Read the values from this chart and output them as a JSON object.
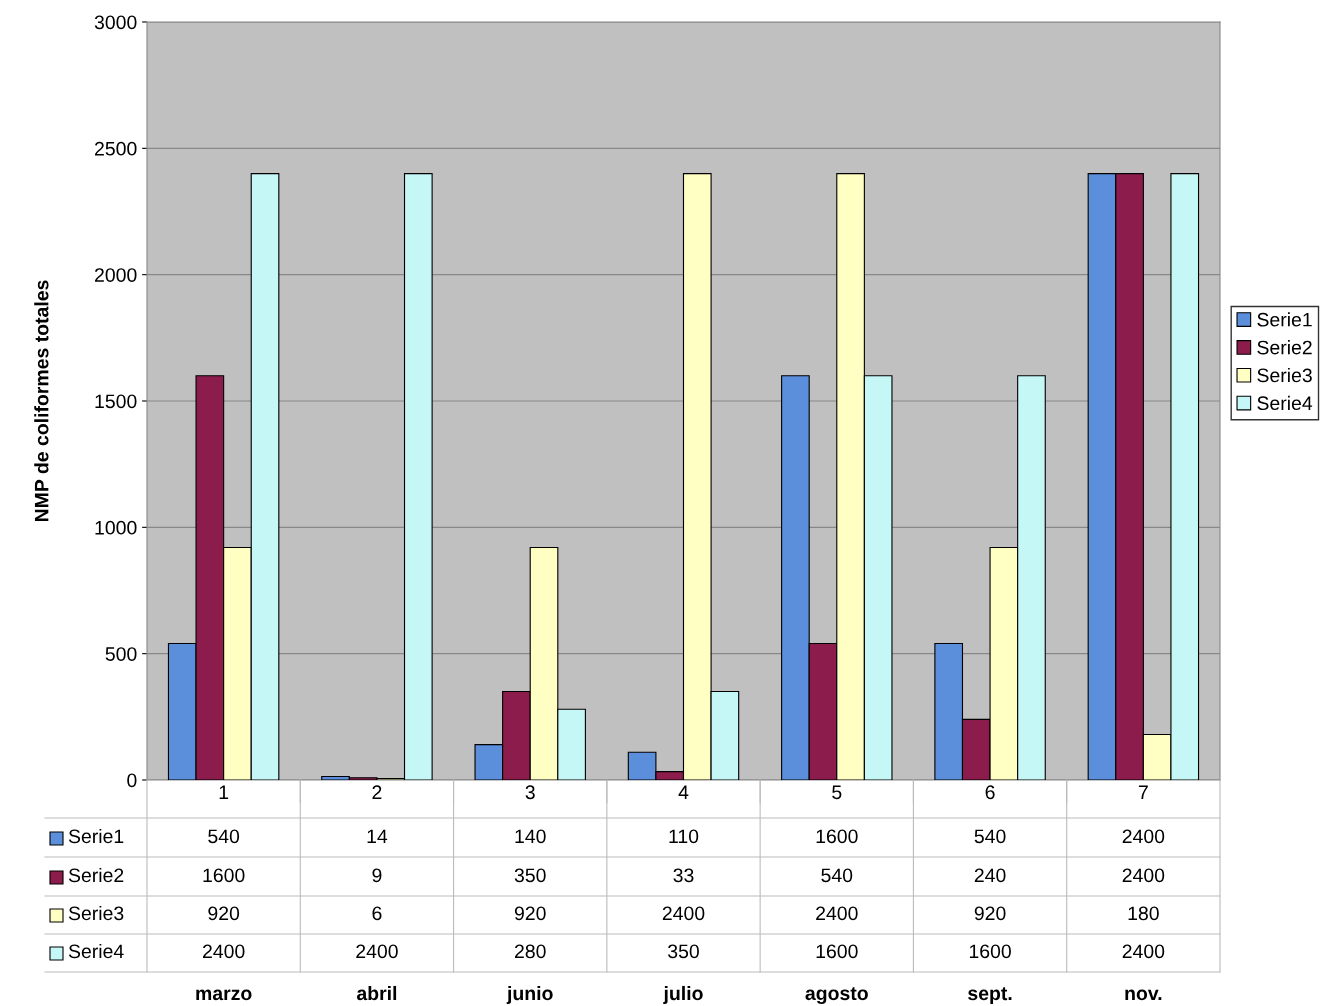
{
  "chart_data": {
    "type": "bar",
    "ylabel": "NMP de coliformes totales",
    "categories": [
      "1",
      "2",
      "3",
      "4",
      "5",
      "6",
      "7"
    ],
    "series": [
      {
        "name": "Serie1",
        "color": "#5b8edb",
        "values": [
          540,
          14,
          140,
          110,
          1600,
          540,
          2400
        ]
      },
      {
        "name": "Serie2",
        "color": "#8c1c4c",
        "values": [
          1600,
          9,
          350,
          33,
          540,
          240,
          2400
        ]
      },
      {
        "name": "Serie3",
        "color": "#ffffc4",
        "values": [
          920,
          6,
          920,
          2400,
          2400,
          920,
          180
        ]
      },
      {
        "name": "Serie4",
        "color": "#c6f7f7",
        "values": [
          2400,
          2400,
          280,
          350,
          1600,
          1600,
          2400
        ]
      }
    ],
    "ylim": [
      0,
      3000
    ],
    "yticks": [
      0,
      500,
      1000,
      1500,
      2000,
      2500,
      3000
    ],
    "grid": "y",
    "legend": "right",
    "data_labels": true,
    "annotations": [
      "marzo",
      "abril",
      "junio",
      "julio",
      "agosto",
      "sept.",
      "nov."
    ]
  }
}
